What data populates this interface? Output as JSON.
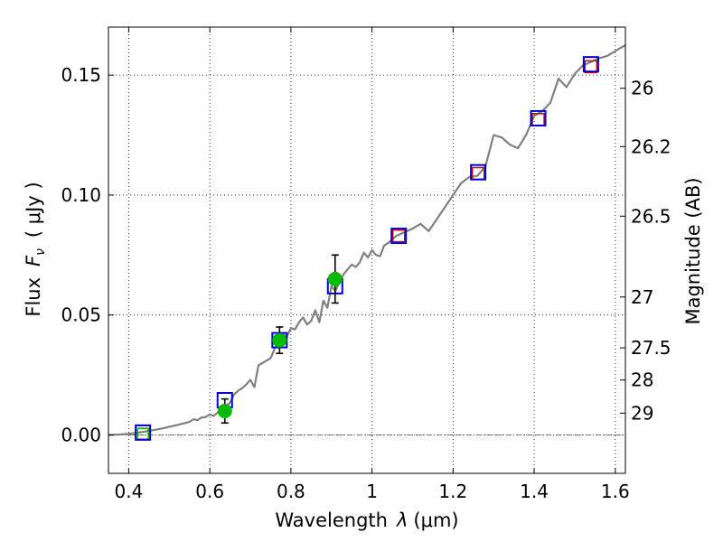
{
  "chart_data": {
    "type": "scatter",
    "title": "",
    "xlabel_prefix": "Wavelength",
    "xlabel_symbol": "λ",
    "xlabel_units": "(μm)",
    "ylabel_prefix": "Flux",
    "ylabel_symbol": "F",
    "ylabel_subscript": "ν",
    "ylabel_units": "( μJy )",
    "y2label": "Magnitude (AB)",
    "xlim": [
      0.35,
      1.625
    ],
    "ylim": [
      -0.016,
      0.17
    ],
    "grid": true,
    "x_ticks": [
      0.4,
      0.6,
      0.8,
      1.0,
      1.2,
      1.4,
      1.6
    ],
    "x_tick_labels": [
      "0.4",
      "0.6",
      "0.8",
      "1",
      "1.2",
      "1.4",
      "1.6"
    ],
    "y_ticks": [
      0.0,
      0.05,
      0.1,
      0.15
    ],
    "y_tick_labels": [
      "0.00",
      "0.05",
      "0.10",
      "0.15"
    ],
    "y2_ticks": [
      {
        "label": "26",
        "flux": 0.1445
      },
      {
        "label": "26.2",
        "flux": 0.1202
      },
      {
        "label": "26.5",
        "flux": 0.0912
      },
      {
        "label": "27",
        "flux": 0.0575
      },
      {
        "label": "27.5",
        "flux": 0.0363
      },
      {
        "label": "28",
        "flux": 0.0229
      },
      {
        "label": "29",
        "flux": 0.0091
      }
    ],
    "series": [
      {
        "name": "model spectrum",
        "kind": "line",
        "color": "#808080",
        "x": [
          0.35,
          0.38,
          0.4,
          0.42,
          0.44,
          0.46,
          0.48,
          0.5,
          0.52,
          0.54,
          0.55,
          0.56,
          0.57,
          0.58,
          0.59,
          0.6,
          0.61,
          0.62,
          0.63,
          0.64,
          0.65,
          0.66,
          0.67,
          0.68,
          0.69,
          0.7,
          0.71,
          0.72,
          0.73,
          0.74,
          0.75,
          0.76,
          0.77,
          0.78,
          0.79,
          0.8,
          0.81,
          0.82,
          0.83,
          0.84,
          0.85,
          0.86,
          0.87,
          0.88,
          0.89,
          0.9,
          0.91,
          0.92,
          0.93,
          0.94,
          0.95,
          0.96,
          0.97,
          0.98,
          0.99,
          1.0,
          1.01,
          1.02,
          1.03,
          1.04,
          1.05,
          1.06,
          1.08,
          1.1,
          1.12,
          1.14,
          1.16,
          1.18,
          1.2,
          1.22,
          1.24,
          1.26,
          1.28,
          1.3,
          1.32,
          1.34,
          1.36,
          1.38,
          1.4,
          1.42,
          1.44,
          1.46,
          1.48,
          1.5,
          1.52,
          1.54,
          1.56,
          1.58,
          1.6,
          1.625
        ],
        "y": [
          0.0,
          0.0002,
          0.0005,
          0.0009,
          0.0014,
          0.002,
          0.0026,
          0.0034,
          0.0042,
          0.005,
          0.0055,
          0.0065,
          0.0062,
          0.0073,
          0.0075,
          0.0085,
          0.008,
          0.0095,
          0.0105,
          0.012,
          0.0135,
          0.017,
          0.0185,
          0.0195,
          0.021,
          0.023,
          0.02,
          0.029,
          0.03,
          0.031,
          0.032,
          0.036,
          0.0395,
          0.042,
          0.041,
          0.0445,
          0.044,
          0.047,
          0.049,
          0.046,
          0.0475,
          0.052,
          0.047,
          0.056,
          0.053,
          0.062,
          0.06,
          0.064,
          0.067,
          0.069,
          0.071,
          0.07,
          0.072,
          0.076,
          0.074,
          0.077,
          0.075,
          0.0745,
          0.079,
          0.08,
          0.0815,
          0.083,
          0.0845,
          0.086,
          0.088,
          0.085,
          0.09,
          0.095,
          0.1,
          0.105,
          0.1075,
          0.108,
          0.112,
          0.125,
          0.124,
          0.121,
          0.1195,
          0.125,
          0.133,
          0.135,
          0.1385,
          0.1485,
          0.145,
          0.1505,
          0.154,
          0.1555,
          0.157,
          0.158,
          0.16,
          0.1625
        ]
      },
      {
        "name": "model band points (blue squares)",
        "kind": "square",
        "color": "#0000cc",
        "x": [
          0.435,
          0.637,
          0.772,
          0.909,
          1.066,
          1.262,
          1.41,
          1.54
        ],
        "y": [
          0.001,
          0.0145,
          0.0395,
          0.062,
          0.083,
          0.1095,
          0.132,
          0.1545
        ]
      },
      {
        "name": "red squares",
        "kind": "square",
        "color": "#dd0000",
        "x": [
          1.066,
          1.262,
          1.41,
          1.54
        ],
        "y": [
          0.083,
          0.109,
          0.1315,
          0.1535
        ]
      },
      {
        "name": "green open squares",
        "kind": "square",
        "color": "#00aa00",
        "x": [
          0.435
        ],
        "y": [
          0.0005
        ]
      },
      {
        "name": "observed photometry",
        "kind": "errorbar",
        "color": "#00bb00",
        "x": [
          0.637,
          0.772,
          0.909
        ],
        "y": [
          0.01,
          0.0395,
          0.065
        ],
        "yerr": [
          0.005,
          0.0055,
          0.01
        ]
      }
    ]
  }
}
